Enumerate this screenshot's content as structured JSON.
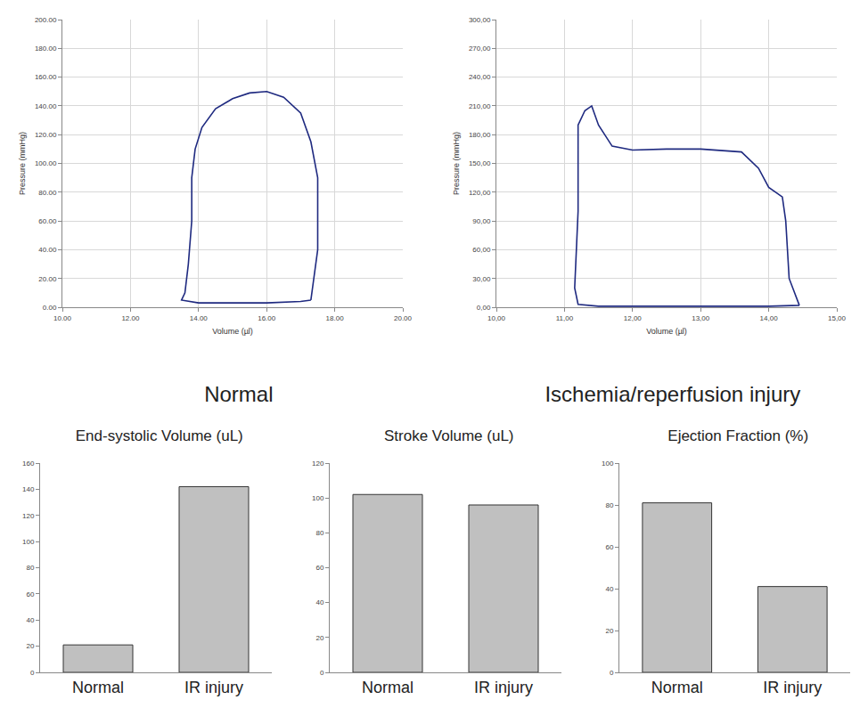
{
  "chart_data": [
    {
      "type": "line",
      "title": "Normal",
      "x_label": "Volume (µl)",
      "y_label": "Pressure (mmHg)",
      "x": [
        17.3,
        17.5,
        17.5,
        17.3,
        17.0,
        16.5,
        16.0,
        15.5,
        15.0,
        14.5,
        14.1,
        13.9,
        13.8,
        13.8,
        13.7,
        13.6,
        13.5,
        14.0,
        15.0,
        16.0,
        17.0,
        17.3
      ],
      "values": [
        5,
        40,
        90,
        115,
        135,
        146,
        150,
        149,
        145,
        138,
        125,
        110,
        90,
        60,
        30,
        10,
        5,
        3,
        3,
        3,
        4,
        5
      ],
      "color": "#1f2a80",
      "xlim": [
        10,
        20
      ],
      "xticks": [
        {
          "value": 10,
          "label": "10.00"
        },
        {
          "value": 12,
          "label": "12.00"
        },
        {
          "value": 14,
          "label": "14.00"
        },
        {
          "value": 16,
          "label": "16.00"
        },
        {
          "value": 18,
          "label": "18.00"
        },
        {
          "value": 20,
          "label": "20.00"
        }
      ],
      "ylim": [
        0,
        200
      ],
      "yticks": [
        {
          "value": 0,
          "label": "0.00"
        },
        {
          "value": 20,
          "label": "20.00"
        },
        {
          "value": 40,
          "label": "40.00"
        },
        {
          "value": 60,
          "label": "60.00"
        },
        {
          "value": 80,
          "label": "80.00"
        },
        {
          "value": 100,
          "label": "100.00"
        },
        {
          "value": 120,
          "label": "120.00"
        },
        {
          "value": 140,
          "label": "140.00"
        },
        {
          "value": 160,
          "label": "160.00"
        },
        {
          "value": 180,
          "label": "180.00"
        },
        {
          "value": 200,
          "label": "200.00"
        }
      ],
      "grid": true
    },
    {
      "type": "line",
      "title": "Ischemia/reperfusion injury",
      "x_label": "Volume (µl)",
      "y_label": "Pressure (mmHg)",
      "x": [
        14.45,
        14.3,
        14.25,
        14.2,
        14.0,
        13.85,
        13.6,
        13.0,
        12.5,
        12.0,
        11.7,
        11.5,
        11.4,
        11.3,
        11.2,
        11.2,
        11.15,
        11.2,
        11.5,
        12.0,
        13.0,
        14.0,
        14.45
      ],
      "values": [
        2,
        30,
        90,
        115,
        125,
        145,
        162,
        165,
        165,
        164,
        168,
        190,
        210,
        205,
        190,
        100,
        20,
        3,
        1,
        1,
        1,
        1,
        2
      ],
      "color": "#1f2a80",
      "xlim": [
        10,
        15
      ],
      "xticks": [
        {
          "value": 10,
          "label": "10,00"
        },
        {
          "value": 11,
          "label": "11,00"
        },
        {
          "value": 12,
          "label": "12,00"
        },
        {
          "value": 13,
          "label": "13,00"
        },
        {
          "value": 14,
          "label": "14,00"
        },
        {
          "value": 15,
          "label": "15,00"
        }
      ],
      "ylim": [
        0,
        300
      ],
      "yticks": [
        {
          "value": 0,
          "label": "0,00"
        },
        {
          "value": 30,
          "label": "30,00"
        },
        {
          "value": 60,
          "label": "60,00"
        },
        {
          "value": 90,
          "label": "90,00"
        },
        {
          "value": 120,
          "label": "120,00"
        },
        {
          "value": 150,
          "label": "150,00"
        },
        {
          "value": 180,
          "label": "180,00"
        },
        {
          "value": 210,
          "label": "210,00"
        },
        {
          "value": 240,
          "label": "240,00"
        },
        {
          "value": 270,
          "label": "270,00"
        },
        {
          "value": 300,
          "label": "300,00"
        }
      ],
      "grid": true
    },
    {
      "type": "bar",
      "title": "End-systolic Volume (uL)",
      "categories": [
        "Normal",
        "IR injury"
      ],
      "values": [
        21,
        142
      ],
      "color": "#c0c0c0",
      "ylim": [
        0,
        160
      ],
      "yticks": [
        0,
        20,
        40,
        60,
        80,
        100,
        120,
        140,
        160
      ],
      "grid": false
    },
    {
      "type": "bar",
      "title": "Stroke Volume (uL)",
      "categories": [
        "Normal",
        "IR injury"
      ],
      "values": [
        102,
        96
      ],
      "color": "#c0c0c0",
      "ylim": [
        0,
        120
      ],
      "yticks": [
        0,
        20,
        40,
        60,
        80,
        100,
        120
      ],
      "grid": false
    },
    {
      "type": "bar",
      "title": "Ejection Fraction (%)",
      "categories": [
        "Normal",
        "IR injury"
      ],
      "values": [
        81,
        41
      ],
      "color": "#c0c0c0",
      "ylim": [
        0,
        100
      ],
      "yticks": [
        0,
        20,
        40,
        60,
        80,
        100
      ],
      "grid": false
    }
  ]
}
